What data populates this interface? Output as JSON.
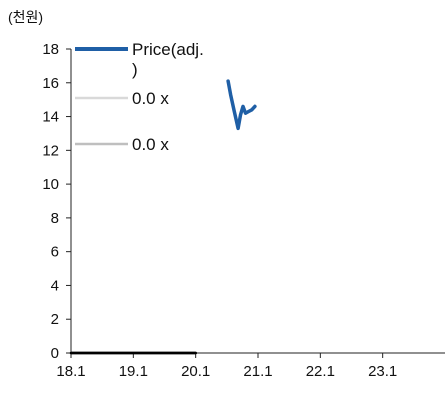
{
  "chart_data": {
    "type": "line",
    "unit_label": "(천원)",
    "ylim": [
      0,
      18
    ],
    "y_ticks": [
      0,
      2,
      4,
      6,
      8,
      10,
      12,
      14,
      16,
      18
    ],
    "xlim": [
      18.1,
      24.1
    ],
    "x_ticks": [
      "18.1",
      "19.1",
      "20.1",
      "21.1",
      "22.1",
      "23.1"
    ],
    "grid": false,
    "legend_placement": "top-left",
    "series": [
      {
        "name": "Price(adj.\n)",
        "color": "#1f5fa6",
        "points": [
          [
            20.62,
            16.1
          ],
          [
            20.66,
            15.3
          ],
          [
            20.72,
            14.3
          ],
          [
            20.78,
            13.3
          ],
          [
            20.82,
            14.1
          ],
          [
            20.86,
            14.6
          ],
          [
            20.9,
            14.2
          ],
          [
            20.95,
            14.3
          ],
          [
            21.0,
            14.4
          ],
          [
            21.05,
            14.6
          ]
        ]
      },
      {
        "name": "0.0 x",
        "color": "#d9d9d9",
        "points": [
          [
            18.1,
            0.0
          ],
          [
            20.1,
            0.0
          ]
        ]
      },
      {
        "name": "0.0 x",
        "color": "#bfbfbf",
        "points": [
          [
            18.1,
            0.0
          ],
          [
            20.1,
            0.0
          ]
        ]
      }
    ]
  }
}
